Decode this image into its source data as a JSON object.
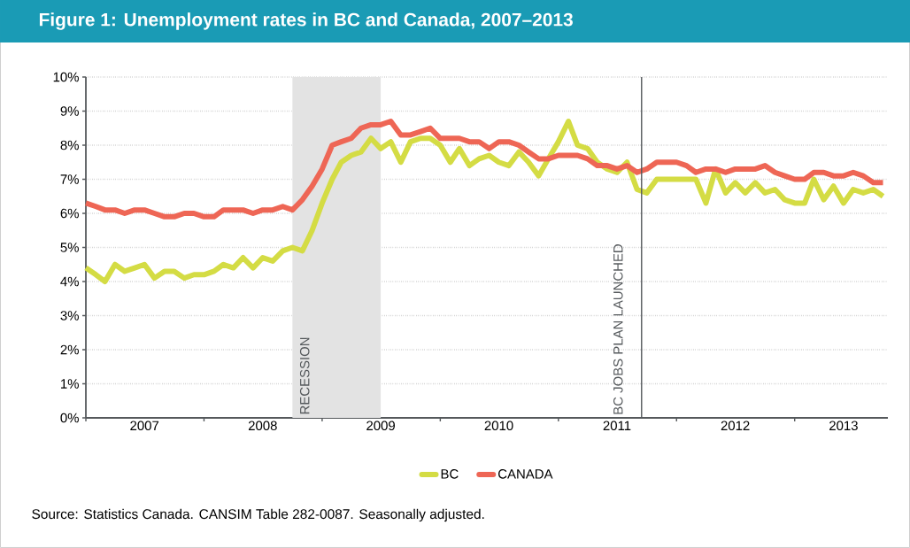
{
  "chart_data": {
    "type": "line",
    "title": "Figure 1: Unemployment rates in BC and Canada, 2007–2013",
    "x": [
      "2007-01",
      "2007-02",
      "2007-03",
      "2007-04",
      "2007-05",
      "2007-06",
      "2007-07",
      "2007-08",
      "2007-09",
      "2007-10",
      "2007-11",
      "2007-12",
      "2008-01",
      "2008-02",
      "2008-03",
      "2008-04",
      "2008-05",
      "2008-06",
      "2008-07",
      "2008-08",
      "2008-09",
      "2008-10",
      "2008-11",
      "2008-12",
      "2009-01",
      "2009-02",
      "2009-03",
      "2009-04",
      "2009-05",
      "2009-06",
      "2009-07",
      "2009-08",
      "2009-09",
      "2009-10",
      "2009-11",
      "2009-12",
      "2010-01",
      "2010-02",
      "2010-03",
      "2010-04",
      "2010-05",
      "2010-06",
      "2010-07",
      "2010-08",
      "2010-09",
      "2010-10",
      "2010-11",
      "2010-12",
      "2011-01",
      "2011-02",
      "2011-03",
      "2011-04",
      "2011-05",
      "2011-06",
      "2011-07",
      "2011-08",
      "2011-09",
      "2011-10",
      "2011-11",
      "2011-12",
      "2012-01",
      "2012-02",
      "2012-03",
      "2012-04",
      "2012-05",
      "2012-06",
      "2012-07",
      "2012-08",
      "2012-09",
      "2012-10",
      "2012-11",
      "2012-12",
      "2013-01",
      "2013-02",
      "2013-03",
      "2013-04",
      "2013-05",
      "2013-06",
      "2013-07",
      "2013-08",
      "2013-09",
      "2013-10"
    ],
    "series": [
      {
        "name": "BC",
        "color": "#d4dc44",
        "values": [
          4.4,
          4.2,
          4.0,
          4.5,
          4.3,
          4.4,
          4.5,
          4.1,
          4.3,
          4.3,
          4.1,
          4.2,
          4.2,
          4.3,
          4.5,
          4.4,
          4.7,
          4.4,
          4.7,
          4.6,
          4.9,
          5.0,
          4.9,
          5.5,
          6.3,
          7.0,
          7.5,
          7.7,
          7.8,
          8.2,
          7.9,
          8.1,
          7.5,
          8.1,
          8.2,
          8.2,
          8.0,
          7.5,
          7.9,
          7.4,
          7.6,
          7.7,
          7.5,
          7.4,
          7.8,
          7.5,
          7.1,
          7.6,
          8.1,
          8.7,
          8.0,
          7.9,
          7.5,
          7.3,
          7.2,
          7.5,
          6.7,
          6.6,
          7.0,
          7.0,
          7.0,
          7.0,
          7.0,
          6.3,
          7.3,
          6.6,
          6.9,
          6.6,
          6.9,
          6.6,
          6.7,
          6.4,
          6.3,
          6.3,
          7.0,
          6.4,
          6.8,
          6.3,
          6.7,
          6.6,
          6.7,
          6.5
        ]
      },
      {
        "name": "CANADA",
        "color": "#ee6655",
        "values": [
          6.3,
          6.2,
          6.1,
          6.1,
          6.0,
          6.1,
          6.1,
          6.0,
          5.9,
          5.9,
          6.0,
          6.0,
          5.9,
          5.9,
          6.1,
          6.1,
          6.1,
          6.0,
          6.1,
          6.1,
          6.2,
          6.1,
          6.4,
          6.8,
          7.3,
          8.0,
          8.1,
          8.2,
          8.5,
          8.6,
          8.6,
          8.7,
          8.3,
          8.3,
          8.4,
          8.5,
          8.2,
          8.2,
          8.2,
          8.1,
          8.1,
          7.9,
          8.1,
          8.1,
          8.0,
          7.8,
          7.6,
          7.6,
          7.7,
          7.7,
          7.7,
          7.6,
          7.4,
          7.4,
          7.3,
          7.4,
          7.2,
          7.3,
          7.5,
          7.5,
          7.5,
          7.4,
          7.2,
          7.3,
          7.3,
          7.2,
          7.3,
          7.3,
          7.3,
          7.4,
          7.2,
          7.1,
          7.0,
          7.0,
          7.2,
          7.2,
          7.1,
          7.1,
          7.2,
          7.1,
          6.9,
          6.9
        ]
      }
    ],
    "xlim": [
      "2007-01-01",
      "2013-10-16"
    ],
    "xticks": [
      {
        "value": "2007-01-01",
        "label": null
      },
      {
        "value": "2008-01-01",
        "label": null
      },
      {
        "value": "2009-01-01",
        "label": null
      },
      {
        "value": "2010-01-01",
        "label": null
      },
      {
        "value": "2011-01-01",
        "label": null
      },
      {
        "value": "2012-01-01",
        "label": null
      },
      {
        "value": "2013-01-01",
        "label": null
      },
      {
        "value": "2007-07-01",
        "label": "2007"
      },
      {
        "value": "2008-07-01",
        "label": "2008"
      },
      {
        "value": "2009-07-01",
        "label": "2009"
      },
      {
        "value": "2010-07-01",
        "label": "2010"
      },
      {
        "value": "2011-07-01",
        "label": "2011"
      },
      {
        "value": "2012-07-01",
        "label": "2012"
      },
      {
        "value": "2013-06-01",
        "label": "2013"
      }
    ],
    "ylim": [
      0,
      10
    ],
    "yticks": [
      {
        "value": 0,
        "label": "0%"
      },
      {
        "value": 1,
        "label": "1%"
      },
      {
        "value": 2,
        "label": "2%"
      },
      {
        "value": 3,
        "label": "3%"
      },
      {
        "value": 4,
        "label": "4%"
      },
      {
        "value": 5,
        "label": "5%"
      },
      {
        "value": 6,
        "label": "6%"
      },
      {
        "value": 7,
        "label": "7%"
      },
      {
        "value": 8,
        "label": "8%"
      },
      {
        "value": 9,
        "label": "9%"
      },
      {
        "value": 10,
        "label": "10%"
      }
    ],
    "bands": [
      {
        "axis": "x",
        "from": "2008-10-01",
        "to": "2009-07-01",
        "label": "RECESSION",
        "color": "#e3e3e3"
      }
    ],
    "ref_lines": [
      {
        "axis": "x",
        "value": "2011-09-15",
        "label": "BC JOBS PLAN LAUNCHED",
        "color": "#55595c"
      }
    ],
    "grid": "y",
    "legend": "bottom",
    "marker": "none",
    "line_style": "solid",
    "annotations": [
      "Source:    Statistics Canada. CANSIM Table 282-0087. Seasonally adjusted."
    ]
  }
}
